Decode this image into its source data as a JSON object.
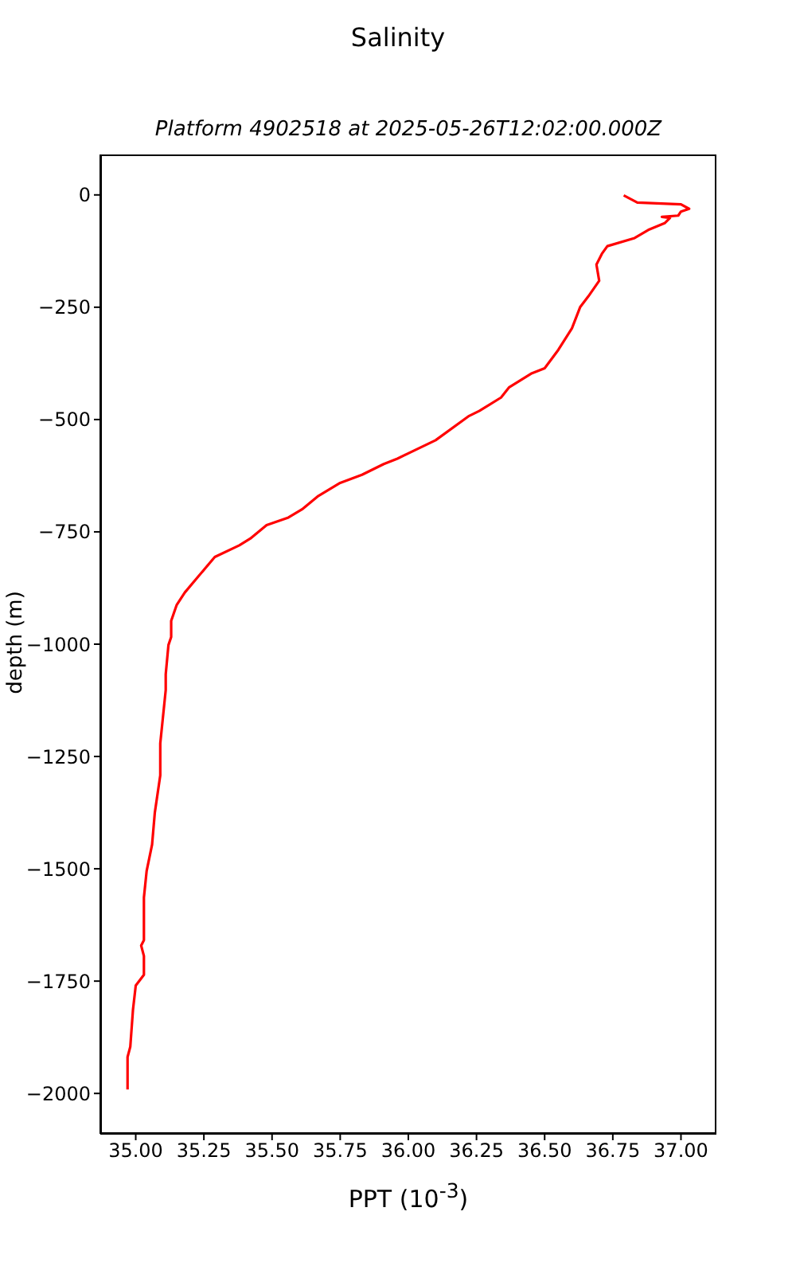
{
  "chart_data": {
    "type": "line",
    "title": "Salinity",
    "subtitle": "Platform 4902518 at 2025-05-26T12:02:00.000Z",
    "xlabel": "PPT (10$^{-3}$)",
    "ylabel": "depth (m)",
    "x": [
      36.79,
      36.84,
      37.0,
      37.03,
      37.0,
      36.99,
      36.93,
      36.96,
      36.94,
      36.88,
      36.83,
      36.73,
      36.71,
      36.69,
      36.7,
      36.66,
      36.63,
      36.6,
      36.55,
      36.5,
      36.45,
      36.37,
      36.34,
      36.26,
      36.22,
      36.1,
      35.96,
      35.91,
      35.83,
      35.75,
      35.67,
      35.61,
      35.56,
      35.48,
      35.42,
      35.38,
      35.29,
      35.23,
      35.18,
      35.15,
      35.13,
      35.13,
      35.12,
      35.11,
      35.11,
      35.09,
      35.09,
      35.07,
      35.06,
      35.04,
      35.03,
      35.03,
      35.02,
      35.03,
      35.03,
      35.0,
      34.99,
      34.98,
      34.97,
      34.97
    ],
    "values": [
      -1,
      -17,
      -21,
      -31,
      -37,
      -46,
      -49,
      -51,
      -63,
      -78,
      -96,
      -114,
      -131,
      -155,
      -191,
      -226,
      -250,
      -297,
      -345,
      -386,
      -398,
      -428,
      -451,
      -481,
      -493,
      -546,
      -587,
      -599,
      -623,
      -641,
      -670,
      -700,
      -718,
      -735,
      -765,
      -780,
      -806,
      -849,
      -885,
      -913,
      -948,
      -984,
      -1002,
      -1067,
      -1102,
      -1221,
      -1292,
      -1375,
      -1446,
      -1505,
      -1564,
      -1659,
      -1671,
      -1694,
      -1736,
      -1760,
      -1813,
      -1896,
      -1919,
      -1991
    ],
    "color": "#ff0000",
    "marker": "none",
    "line_style": "solid",
    "grid": false,
    "legend": false,
    "xlim": [
      34.87,
      37.13
    ],
    "ylim": [
      -2090,
      90
    ],
    "xticks": [
      {
        "value": 35,
        "label": "35.00"
      },
      {
        "value": 35.25,
        "label": "35.25"
      },
      {
        "value": 35.5,
        "label": "35.50"
      },
      {
        "value": 35.75,
        "label": "35.75"
      },
      {
        "value": 36,
        "label": "36.00"
      },
      {
        "value": 36.25,
        "label": "36.25"
      },
      {
        "value": 36.5,
        "label": "36.50"
      },
      {
        "value": 36.75,
        "label": "36.75"
      },
      {
        "value": 37,
        "label": "37.00"
      }
    ],
    "yticks": [
      0,
      {
        "value": -250,
        "label": "−250"
      },
      {
        "value": -500,
        "label": "−500"
      },
      {
        "value": -750,
        "label": "−750"
      },
      {
        "value": -1000,
        "label": "−1000"
      },
      {
        "value": -1250,
        "label": "−1250"
      },
      {
        "value": -1500,
        "label": "−1500"
      },
      {
        "value": -1750,
        "label": "−1750"
      },
      {
        "value": -2000,
        "label": "−2000"
      }
    ]
  }
}
